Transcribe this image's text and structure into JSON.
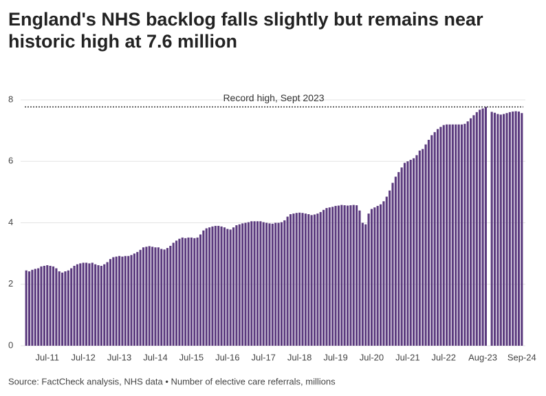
{
  "chart_data": {
    "type": "bar",
    "title_lines": [
      "England's NHS backlog falls slightly but remains near",
      "historic high at 7.6 million"
    ],
    "source": "Source: FactCheck analysis, NHS data • Number of elective care referrals, millions",
    "annotation": {
      "text": "Record high, Sept 2023",
      "value": 7.77
    },
    "color": "#5b3a7e",
    "ylim": [
      0,
      8
    ],
    "yticks": [
      0,
      2,
      4,
      6,
      8
    ],
    "grid": true,
    "categories": [
      null,
      null,
      null,
      null,
      null,
      null,
      null,
      "Jul-11",
      null,
      null,
      null,
      null,
      null,
      null,
      null,
      null,
      null,
      null,
      null,
      "Jul-12",
      null,
      null,
      null,
      null,
      null,
      null,
      null,
      null,
      null,
      null,
      null,
      "Jul-13",
      null,
      null,
      null,
      null,
      null,
      null,
      null,
      null,
      null,
      null,
      null,
      "Jul-14",
      null,
      null,
      null,
      null,
      null,
      null,
      null,
      null,
      null,
      null,
      null,
      "Jul-15",
      null,
      null,
      null,
      null,
      null,
      null,
      null,
      null,
      null,
      null,
      null,
      "Jul-16",
      null,
      null,
      null,
      null,
      null,
      null,
      null,
      null,
      null,
      null,
      null,
      "Jul-17",
      null,
      null,
      null,
      null,
      null,
      null,
      null,
      null,
      null,
      null,
      null,
      "Jul-18",
      null,
      null,
      null,
      null,
      null,
      null,
      null,
      null,
      null,
      null,
      null,
      "Jul-19",
      null,
      null,
      null,
      null,
      null,
      null,
      null,
      null,
      null,
      null,
      null,
      "Jul-20",
      null,
      null,
      null,
      null,
      null,
      null,
      null,
      null,
      null,
      null,
      null,
      "Jul-21",
      null,
      null,
      null,
      null,
      null,
      null,
      null,
      null,
      null,
      null,
      null,
      "Jul-22",
      null,
      null,
      null,
      null,
      null,
      null,
      null,
      null,
      null,
      null,
      null,
      null,
      "Aug-23",
      null,
      null,
      null,
      null,
      null,
      null,
      null,
      null,
      null,
      null,
      null,
      null,
      "Sep-24"
    ],
    "values": [
      2.45,
      2.42,
      2.47,
      2.5,
      2.52,
      2.58,
      2.6,
      2.62,
      2.6,
      2.58,
      2.52,
      2.42,
      2.38,
      2.42,
      2.45,
      2.52,
      2.6,
      2.65,
      2.68,
      2.7,
      2.7,
      2.68,
      2.7,
      2.65,
      2.62,
      2.6,
      2.65,
      2.72,
      2.82,
      2.88,
      2.9,
      2.92,
      2.9,
      2.92,
      2.92,
      2.95,
      3.0,
      3.05,
      3.12,
      3.2,
      3.22,
      3.24,
      3.22,
      3.2,
      3.2,
      3.15,
      3.13,
      3.18,
      3.25,
      3.35,
      3.42,
      3.48,
      3.52,
      3.5,
      3.52,
      3.52,
      3.5,
      3.52,
      3.62,
      3.75,
      3.82,
      3.85,
      3.88,
      3.9,
      3.9,
      3.88,
      3.85,
      3.8,
      3.78,
      3.85,
      3.92,
      3.95,
      3.98,
      4.0,
      4.02,
      4.05,
      4.05,
      4.05,
      4.05,
      4.02,
      4.0,
      3.98,
      3.97,
      4.0,
      4.0,
      4.02,
      4.08,
      4.2,
      4.28,
      4.3,
      4.32,
      4.33,
      4.32,
      4.3,
      4.28,
      4.25,
      4.27,
      4.3,
      4.35,
      4.42,
      4.48,
      4.5,
      4.52,
      4.55,
      4.56,
      4.58,
      4.57,
      4.56,
      4.57,
      4.58,
      4.57,
      4.4,
      4.0,
      3.95,
      4.3,
      4.45,
      4.5,
      4.55,
      4.6,
      4.7,
      4.85,
      5.05,
      5.3,
      5.5,
      5.65,
      5.8,
      5.95,
      6.0,
      6.05,
      6.1,
      6.2,
      6.35,
      6.4,
      6.55,
      6.7,
      6.85,
      6.95,
      7.05,
      7.12,
      7.18,
      7.2,
      7.2,
      7.2,
      7.2,
      7.2,
      7.2,
      7.22,
      7.3,
      7.4,
      7.5,
      7.6,
      7.68,
      7.72,
      7.77,
      null,
      7.61,
      7.58,
      7.54,
      7.52,
      7.54,
      7.57,
      7.6,
      7.62,
      7.63,
      7.62,
      7.57
    ]
  }
}
